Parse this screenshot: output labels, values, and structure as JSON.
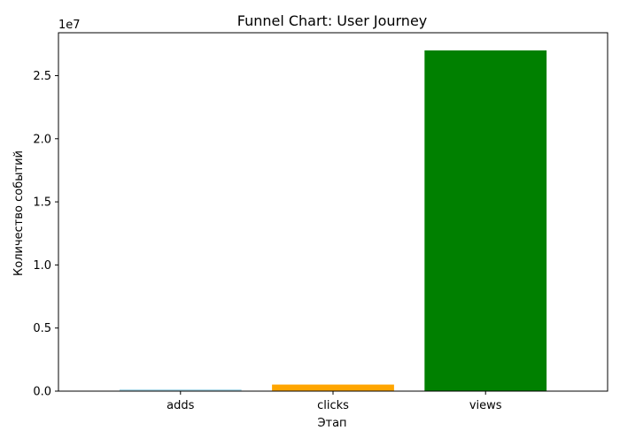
{
  "chart_data": {
    "type": "bar",
    "title": "Funnel Chart: User Journey",
    "xlabel": "Этап",
    "ylabel": "Количество событий",
    "y_offset_label": "1e7",
    "y_scale": 10000000,
    "categories": [
      "adds",
      "clicks",
      "views"
    ],
    "values": [
      150000,
      520000,
      27000000
    ],
    "colors": [
      "#add8e6",
      "#ffa500",
      "#008000"
    ],
    "ylim": [
      0,
      28400000
    ],
    "yticks": [
      0,
      5000000,
      10000000,
      15000000,
      20000000,
      25000000
    ],
    "ytick_labels": [
      "0.0",
      "0.5",
      "1.0",
      "1.5",
      "2.0",
      "2.5"
    ],
    "grid": false,
    "legend": "none"
  }
}
